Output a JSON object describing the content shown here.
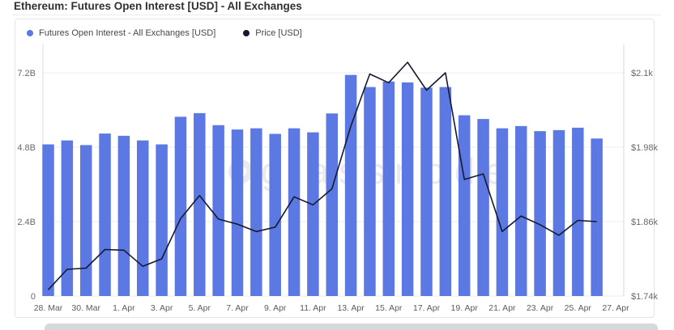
{
  "page": {
    "title": "Ethereum: Futures Open Interest [USD] - All Exchanges"
  },
  "legend": [
    {
      "label": "Futures Open Interest - All Exchanges [USD]",
      "color": "#5b78e3"
    },
    {
      "label": "Price [USD]",
      "color": "#17192e"
    }
  ],
  "watermark": "glassnode",
  "colors": {
    "bar": "#5b78e3",
    "price_line": "#17192e",
    "gridline": "#ededf1",
    "axis_line": "#d9dade",
    "tick_label": "#67696e"
  },
  "chart_data": {
    "type": "bar",
    "title": "Ethereum: Futures Open Interest [USD] - All Exchanges",
    "xlabel": "",
    "ylabel_left": "Futures Open Interest [USD]",
    "ylabel_right": "Price [USD]",
    "grid": true,
    "legend_position": "top-left",
    "x": [
      "28. Mar",
      "29. Mar",
      "30. Mar",
      "31. Mar",
      "1. Apr",
      "2. Apr",
      "3. Apr",
      "4. Apr",
      "5. Apr",
      "6. Apr",
      "7. Apr",
      "8. Apr",
      "9. Apr",
      "10. Apr",
      "11. Apr",
      "12. Apr",
      "13. Apr",
      "14. Apr",
      "15. Apr",
      "16. Apr",
      "17. Apr",
      "18. Apr",
      "19. Apr",
      "20. Apr",
      "21. Apr",
      "22. Apr",
      "23. Apr",
      "24. Apr",
      "25. Apr",
      "26. Apr"
    ],
    "series": [
      {
        "name": "Futures Open Interest - All Exchanges [USD]",
        "type": "bar",
        "axis": "left",
        "unit": "B",
        "values": [
          4.89,
          5.02,
          4.87,
          5.24,
          5.17,
          5.02,
          4.89,
          5.78,
          5.9,
          5.51,
          5.37,
          5.41,
          5.23,
          5.41,
          5.28,
          5.89,
          7.13,
          6.74,
          6.92,
          6.89,
          6.72,
          6.74,
          5.83,
          5.71,
          5.41,
          5.48,
          5.32,
          5.35,
          5.43,
          5.08
        ]
      },
      {
        "name": "Price [USD]",
        "type": "line",
        "axis": "right",
        "unit": "$",
        "values": [
          1750,
          1783,
          1785,
          1815,
          1814,
          1788,
          1800,
          1865,
          1902,
          1864,
          1856,
          1844,
          1851,
          1900,
          1887,
          1913,
          2014,
          2098,
          2084,
          2117,
          2072,
          2100,
          1928,
          1937,
          1844,
          1869,
          1855,
          1838,
          1862,
          1860
        ]
      }
    ],
    "left_axis": {
      "ylim": [
        0,
        7.2
      ],
      "ticks": [
        {
          "label": "0",
          "value": 0
        },
        {
          "label": "2.4B",
          "value": 2.4
        },
        {
          "label": "4.8B",
          "value": 4.8
        },
        {
          "label": "7.2B",
          "value": 7.2
        }
      ]
    },
    "right_axis": {
      "ylim": [
        1740,
        2100
      ],
      "ticks": [
        {
          "label": "$1.74k",
          "value": 1740
        },
        {
          "label": "$1.86k",
          "value": 1860
        },
        {
          "label": "$1.98k",
          "value": 1980
        },
        {
          "label": "$2.1k",
          "value": 2100
        }
      ]
    },
    "x_ticks": [
      {
        "label": "28. Mar",
        "day": 0
      },
      {
        "label": "30. Mar",
        "day": 2
      },
      {
        "label": "1. Apr",
        "day": 4
      },
      {
        "label": "3. Apr",
        "day": 6
      },
      {
        "label": "5. Apr",
        "day": 8
      },
      {
        "label": "7. Apr",
        "day": 10
      },
      {
        "label": "9. Apr",
        "day": 12
      },
      {
        "label": "11. Apr",
        "day": 14
      },
      {
        "label": "13. Apr",
        "day": 16
      },
      {
        "label": "15. Apr",
        "day": 18
      },
      {
        "label": "17. Apr",
        "day": 20
      },
      {
        "label": "19. Apr",
        "day": 22
      },
      {
        "label": "21. Apr",
        "day": 24
      },
      {
        "label": "23. Apr",
        "day": 26
      },
      {
        "label": "25. Apr",
        "day": 28
      },
      {
        "label": "27. Apr",
        "day": 30
      }
    ]
  }
}
